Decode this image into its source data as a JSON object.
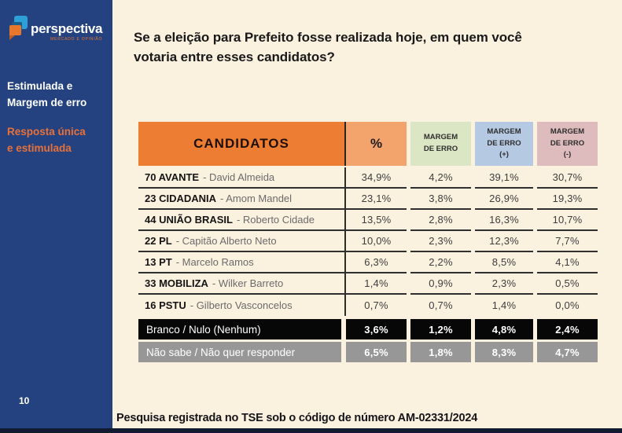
{
  "sidebar": {
    "logo": {
      "text": "perspectiva",
      "tagline": "MERCADO E OPINIÃO"
    },
    "subtitle_primary": "Estimulada e Margem de erro",
    "subtitle_secondary": "Resposta única e estimulada",
    "page_number": "10"
  },
  "question": {
    "title": "Se a eleição para Prefeito fosse realizada hoje, em quem você votaria entre esses candidatos?"
  },
  "footer": {
    "text": "Pesquisa registrada no TSE sob o código de número AM-02331/2024"
  },
  "table": {
    "headers": {
      "candidates": "CANDIDATOS",
      "percent": "%",
      "margin": "MARGEM DE ERRO",
      "margin_plus_label": "MARGEM DE ERRO",
      "margin_plus_sign": "(+)",
      "margin_minus_label": "MARGEM DE ERRO",
      "margin_minus_sign": "(-)"
    },
    "rows": [
      {
        "party": "70 AVANTE",
        "name": "- David Almeida",
        "pct": "34,9%",
        "margin": "4,2%",
        "plus": "39,1%",
        "minus": "30,7%"
      },
      {
        "party": "23 CIDADANIA",
        "name": "- Amom Mandel",
        "pct": "23,1%",
        "margin": "3,8%",
        "plus": "26,9%",
        "minus": "19,3%"
      },
      {
        "party": "44 UNIÃO BRASIL",
        "name": "- Roberto Cidade",
        "pct": "13,5%",
        "margin": "2,8%",
        "plus": "16,3%",
        "minus": "10,7%"
      },
      {
        "party": "22 PL",
        "name": "- Capitão Alberto Neto",
        "pct": "10,0%",
        "margin": "2,3%",
        "plus": "12,3%",
        "minus": "7,7%"
      },
      {
        "party": "13 PT",
        "name": "- Marcelo Ramos",
        "pct": "6,3%",
        "margin": "2,2%",
        "plus": "8,5%",
        "minus": "4,1%"
      },
      {
        "party": "33 MOBILIZA",
        "name": "- Wilker Barreto",
        "pct": "1,4%",
        "margin": "0,9%",
        "plus": "2,3%",
        "minus": "0,5%"
      },
      {
        "party": "16 PSTU",
        "name": "- Gilberto Vasconcelos",
        "pct": "0,7%",
        "margin": "0,7%",
        "plus": "1,4%",
        "minus": "0,0%"
      }
    ],
    "summary_rows": [
      {
        "label": "Branco / Nulo (Nenhum)",
        "pct": "3,6%",
        "margin": "1,2%",
        "plus": "4,8%",
        "minus": "2,4%"
      },
      {
        "label": "Não sabe / Não quer responder",
        "pct": "6,5%",
        "margin": "1,8%",
        "plus": "8,3%",
        "minus": "4,7%"
      }
    ]
  },
  "colors": {
    "sidebar_blue": "#24427f",
    "background_cream": "#fbf1df",
    "header_orange": "#ec7d33",
    "header_light_orange": "#f3a36c",
    "header_green": "#dbe6c5",
    "header_blue": "#b6c9e3",
    "header_pink": "#debbbc",
    "accent_orange_text": "#e8713a",
    "logo_blue": "#2f9fd8",
    "logo_orange": "#e8772e",
    "summary_black": "#070707",
    "summary_gray": "#979797",
    "bottom_bar": "#121b31"
  }
}
